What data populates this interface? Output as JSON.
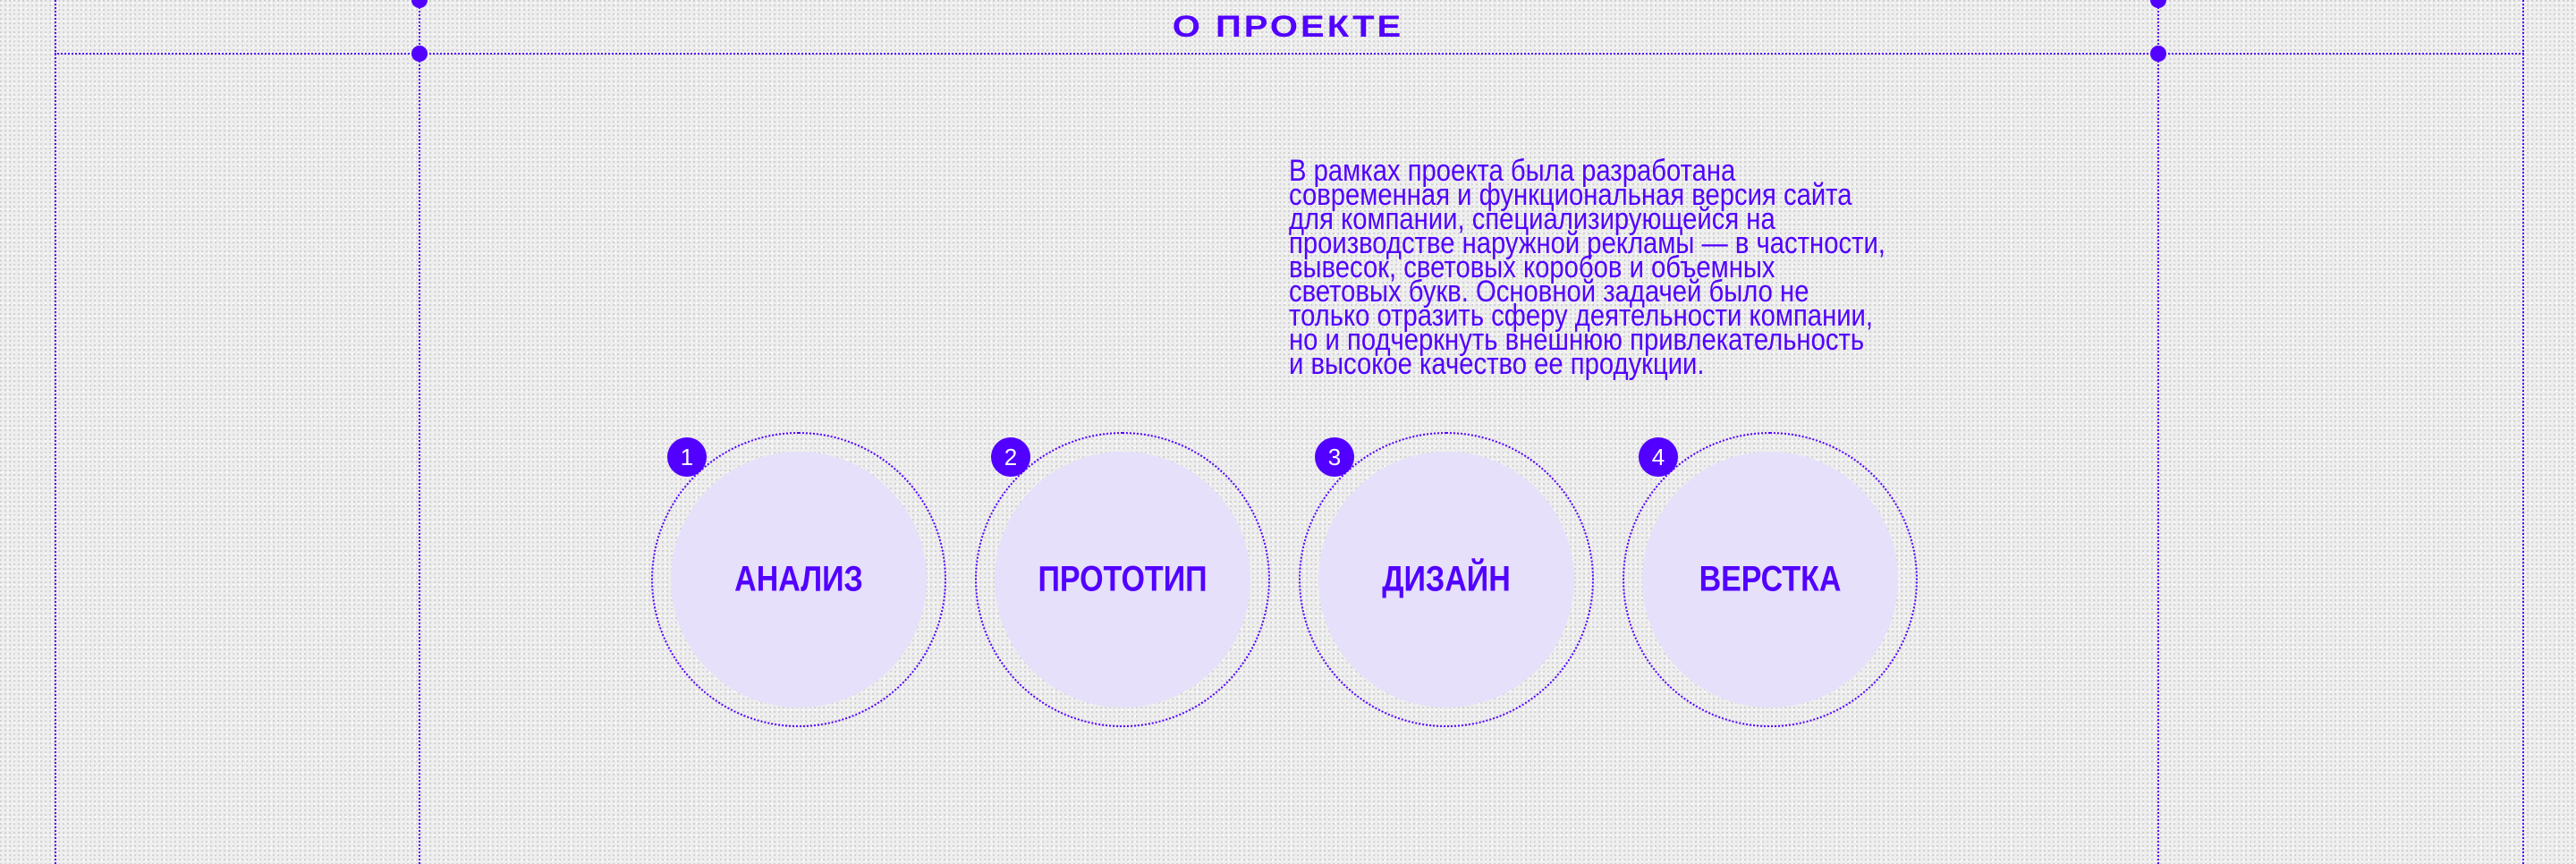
{
  "header": {
    "title": "О ПРОЕКТЕ"
  },
  "description": {
    "lines": [
      "В рамках проекта была разработана",
      "современная и функциональная версия сайта",
      "для компании, специализирующейся на",
      "производстве наружной рекламы — в частности,",
      "вывесок, световых коробов и объемных",
      "световых букв. Основной задачей было не",
      "только отразить сферу деятельности компании,",
      "но и подчеркнуть внешнюю привлекательность",
      "и высокое качество ее продукции."
    ]
  },
  "steps": [
    {
      "number": "1",
      "label": "АНАЛИЗ"
    },
    {
      "number": "2",
      "label": "ПРОТОТИП"
    },
    {
      "number": "3",
      "label": "ДИЗАЙН"
    },
    {
      "number": "4",
      "label": "ВЕРСТКА"
    }
  ],
  "colors": {
    "accent": "#5200ff",
    "circle_fill": "#e6e0fb",
    "background": "#eeeeee"
  }
}
